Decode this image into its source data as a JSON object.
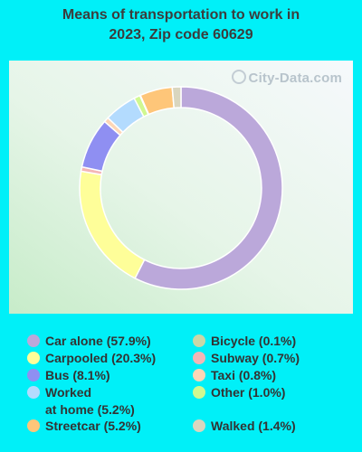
{
  "title_line1": "Means of transportation to work in",
  "title_line2": "2023, Zip code 60629",
  "watermark": "City-Data.com",
  "chart_data": {
    "type": "pie",
    "title": "Means of transportation to work in 2023, Zip code 60629",
    "donut": true,
    "series": [
      {
        "name": "Car alone",
        "value": 57.9,
        "label": "Car alone (57.9%)",
        "color": "#bba8da"
      },
      {
        "name": "Carpooled",
        "value": 20.3,
        "label": "Carpooled (20.3%)",
        "color": "#fefe99"
      },
      {
        "name": "Subway",
        "value": 0.7,
        "label": "Subway (0.7%)",
        "color": "#f4b6b6"
      },
      {
        "name": "Bus",
        "value": 8.1,
        "label": "Bus (8.1%)",
        "color": "#8f8ff2"
      },
      {
        "name": "Taxi",
        "value": 0.8,
        "label": "Taxi (0.8%)",
        "color": "#fdd6b6"
      },
      {
        "name": "Worked at home",
        "value": 5.2,
        "label": "Worked\nat home (5.2%)",
        "color": "#b3dbfe"
      },
      {
        "name": "Other",
        "value": 1.0,
        "label": "Other (1.0%)",
        "color": "#d0f891"
      },
      {
        "name": "Bicycle",
        "value": 0.1,
        "label": "Bicycle (0.1%)",
        "color": "#cad7a8"
      },
      {
        "name": "Streetcar",
        "value": 5.2,
        "label": "Streetcar (5.2%)",
        "color": "#fec679"
      },
      {
        "name": "Walked",
        "value": 1.4,
        "label": "Walked (1.4%)",
        "color": "#d9d6bf"
      }
    ],
    "legend_order": [
      "Car alone",
      "Carpooled",
      "Bus",
      "Worked at home",
      "Streetcar",
      "Bicycle",
      "Subway",
      "Taxi",
      "Other",
      "Walked"
    ],
    "legend_placement": "bottom"
  }
}
